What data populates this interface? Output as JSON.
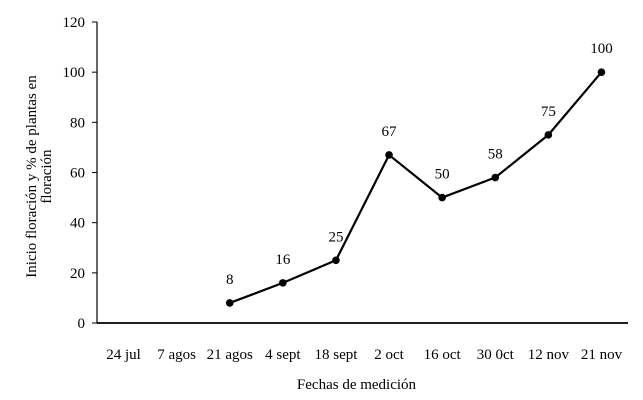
{
  "chart_data": {
    "type": "line",
    "title": "",
    "xlabel": "Fechas de medición",
    "ylabel_lines": [
      "Inicio floración y % de plantas en",
      "floración"
    ],
    "categories": [
      "24 jul",
      "7 agos",
      "21 agos",
      "4 sept",
      "18 sept",
      "2 oct",
      "16 oct",
      "30 0ct",
      "12 nov",
      "21 nov"
    ],
    "series": [
      {
        "values": [
          null,
          null,
          8,
          16,
          25,
          67,
          50,
          58,
          75,
          100
        ],
        "data_labels": [
          "",
          "",
          "8",
          "16",
          "25",
          "67",
          "50",
          "58",
          "75",
          "100"
        ]
      }
    ],
    "yticks": [
      "0",
      "20",
      "40",
      "60",
      "80",
      "100",
      "120"
    ],
    "ylim": [
      0,
      120
    ],
    "grid": false,
    "legend": "none",
    "line_color": "#000000"
  }
}
